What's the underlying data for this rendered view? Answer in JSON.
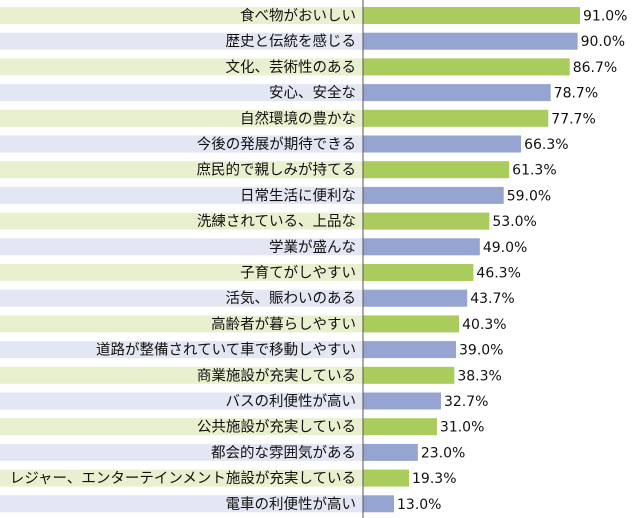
{
  "chart_data": {
    "type": "bar",
    "orientation": "horizontal",
    "categories": [
      "食べ物がおいしい",
      "歴史と伝統を感じる",
      "文化、芸術性のある",
      "安心、安全な",
      "自然環境の豊かな",
      "今後の発展が期待できる",
      "庶民的で親しみが持てる",
      "日常生活に便利な",
      "洗練されている、上品な",
      "学業が盛んな",
      "子育てがしやすい",
      "活気、賑わいのある",
      "高齢者が暮らしやすい",
      "道路が整備されていて車で移動しやすい",
      "商業施設が充実している",
      "バスの利便性が高い",
      "公共施設が充実している",
      "都会的な雰囲気がある",
      "レジャー、エンターテインメント施設が充実している",
      "電車の利便性が高い"
    ],
    "values": [
      91.0,
      90.0,
      86.7,
      78.7,
      77.7,
      66.3,
      61.3,
      59.0,
      53.0,
      49.0,
      46.3,
      43.7,
      40.3,
      39.0,
      38.3,
      32.7,
      31.0,
      23.0,
      19.3,
      13.0
    ],
    "value_labels": [
      "91.0%",
      "90.0%",
      "86.7%",
      "78.7%",
      "77.7%",
      "66.3%",
      "61.3%",
      "59.0%",
      "53.0%",
      "49.0%",
      "46.3%",
      "43.7%",
      "40.3%",
      "39.0%",
      "38.3%",
      "32.7%",
      "31.0%",
      "23.0%",
      "19.3%",
      "13.0%"
    ],
    "xlim": [
      0,
      100
    ],
    "grid": false,
    "colors": {
      "bar_a": "#a9cc5c",
      "bar_b": "#95a4d0",
      "band_a": "#e9f0cf",
      "band_b": "#e3e6f3",
      "axis": "#555555",
      "text": "#111111"
    }
  }
}
